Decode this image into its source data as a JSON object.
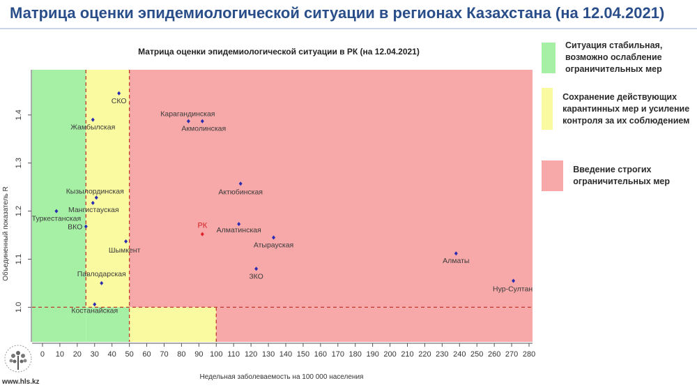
{
  "header": {
    "title": "Матрица оценки эпидемиологической ситуации в регионах Казахстана (на 12.04.2021)"
  },
  "legend": [
    {
      "color": "#a6f0a6",
      "text": "Ситуация стабильная, возможно ослабление ограничительных мер"
    },
    {
      "color": "#fafaa0",
      "text": "Сохранение действующих карантинных мер и усиление контроля за их соблюдением"
    },
    {
      "color": "#f7a8a8",
      "text": "Введение строгих ограничительных мер"
    }
  ],
  "footer": {
    "site": "www.hls.kz"
  },
  "chart_data": {
    "type": "scatter",
    "title": "Матрица оценки эпидемиологической ситуации в РК (на 12.04.2021)",
    "xlabel": "Недельная заболеваемость на 100 000 населения",
    "ylabel": "Объединенный показатель R",
    "xlim": [
      -6,
      282
    ],
    "ylim": [
      0.928,
      1.494
    ],
    "x_ticks": [
      0,
      10,
      20,
      30,
      40,
      50,
      60,
      70,
      80,
      90,
      100,
      110,
      120,
      130,
      140,
      150,
      160,
      170,
      180,
      190,
      200,
      210,
      220,
      230,
      240,
      250,
      260,
      270,
      280
    ],
    "y_ticks": [
      1.0,
      1.1,
      1.2,
      1.3,
      1.4
    ],
    "y_tick_labels": [
      "1.0",
      "1.1",
      "1.2",
      "1.3",
      "1.4"
    ],
    "zones": {
      "colors": {
        "green": "#a6f0a6",
        "yellow": "#fafaa0",
        "red": "#f7a8a8"
      },
      "x_thresholds": [
        25,
        50,
        100
      ],
      "y_threshold": 1.0,
      "threshold_color": "#c0392b"
    },
    "points": [
      {
        "label": "СКО",
        "x": 44,
        "y": 1.445,
        "color": "#2b2bb0"
      },
      {
        "label": "Жамбылская",
        "x": 29,
        "y": 1.39,
        "color": "#2b2bb0"
      },
      {
        "label": "Карагандинская",
        "x": 84,
        "y": 1.387,
        "color": "#2b2bb0"
      },
      {
        "label": "Акмолинская",
        "x": 92,
        "y": 1.387,
        "color": "#2b2bb0"
      },
      {
        "label": "Актюбинская",
        "x": 114,
        "y": 1.257,
        "color": "#2b2bb0"
      },
      {
        "label": "Кызылординская",
        "x": 31,
        "y": 1.228,
        "color": "#2b2bb0"
      },
      {
        "label": "Мангистауская",
        "x": 29,
        "y": 1.217,
        "color": "#2b2bb0"
      },
      {
        "label": "Туркестанская",
        "x": 8,
        "y": 1.2,
        "color": "#2b2bb0"
      },
      {
        "label": "ВКО",
        "x": 25,
        "y": 1.168,
        "color": "#2b2bb0"
      },
      {
        "label": "РК",
        "x": 92,
        "y": 1.152,
        "color": "#e0202a"
      },
      {
        "label": "Алматинская",
        "x": 113,
        "y": 1.173,
        "color": "#2b2bb0"
      },
      {
        "label": "Атырауская",
        "x": 133,
        "y": 1.145,
        "color": "#2b2bb0"
      },
      {
        "label": "Шымкент",
        "x": 48,
        "y": 1.137,
        "color": "#2b2bb0"
      },
      {
        "label": "Алматы",
        "x": 238,
        "y": 1.112,
        "color": "#2b2bb0"
      },
      {
        "label": "ЗКО",
        "x": 123,
        "y": 1.08,
        "color": "#2b2bb0"
      },
      {
        "label": "Павлодарская",
        "x": 34,
        "y": 1.05,
        "color": "#2b2bb0"
      },
      {
        "label": "Нур-Султан",
        "x": 271,
        "y": 1.055,
        "color": "#2b2bb0"
      },
      {
        "label": "Костанайская",
        "x": 30,
        "y": 1.006,
        "color": "#2b2bb0"
      }
    ]
  }
}
